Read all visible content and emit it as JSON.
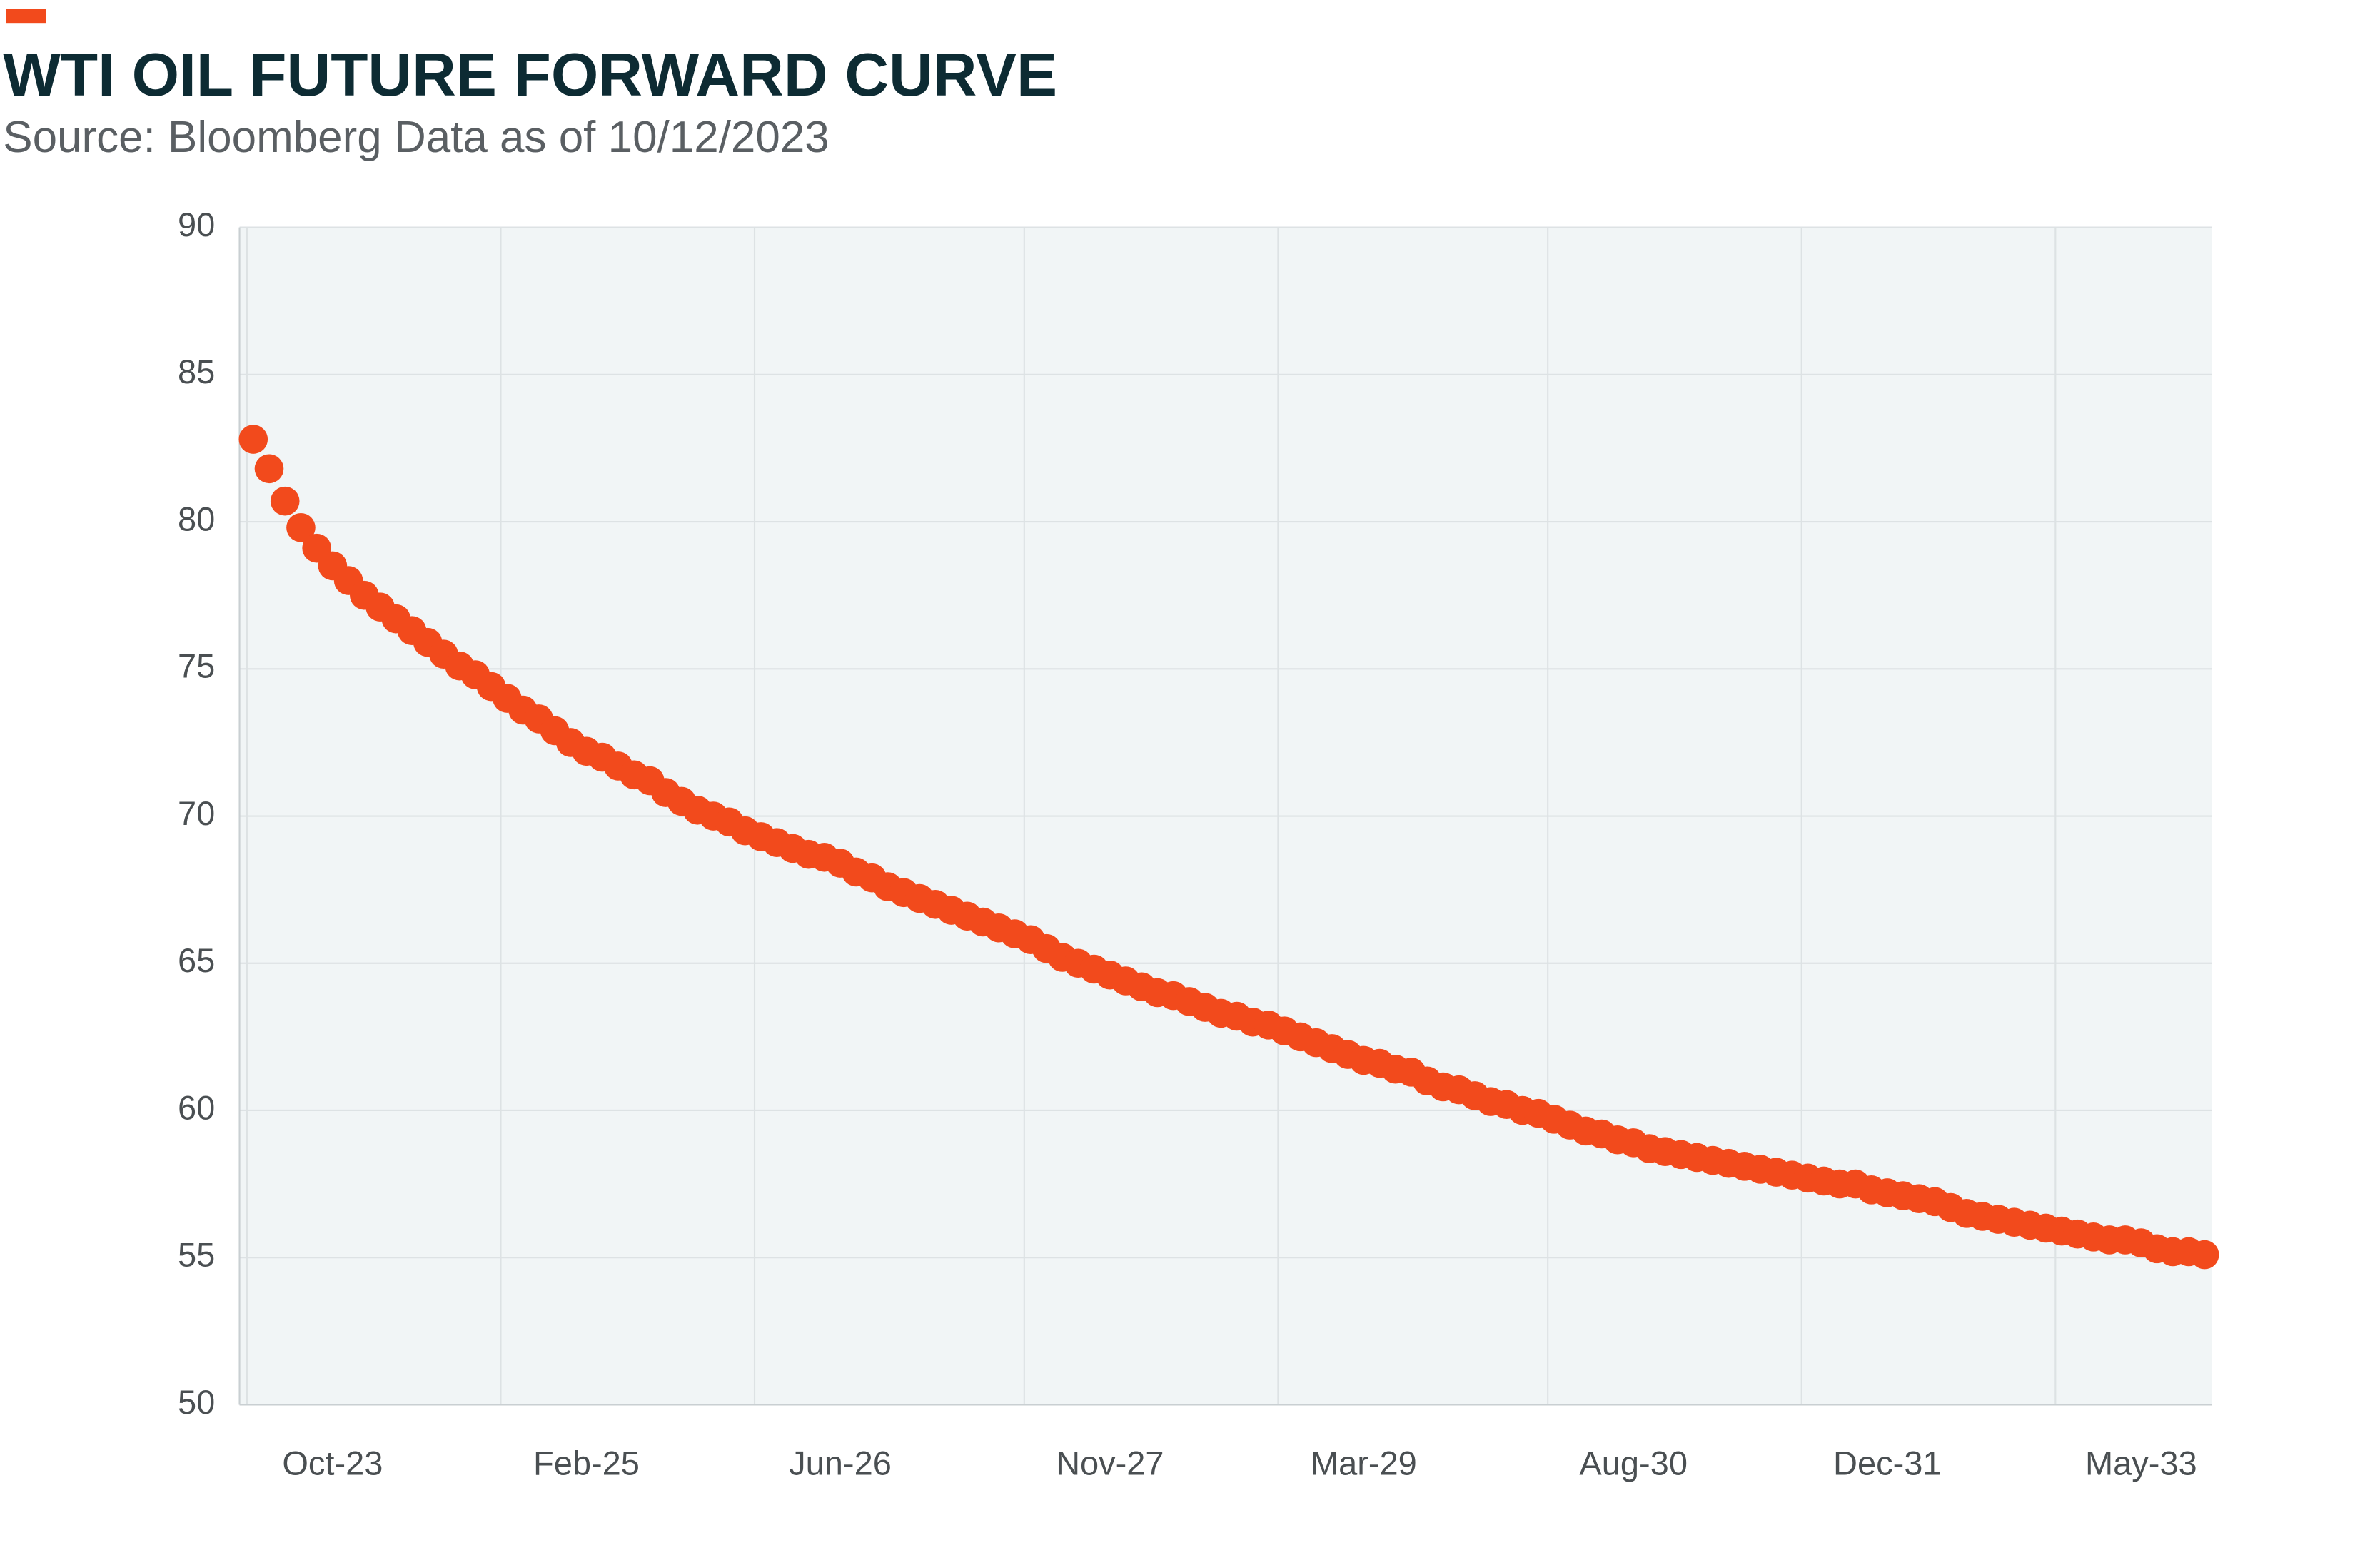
{
  "chart_data": {
    "type": "scatter",
    "title": "WTI OIL FUTURE FORWARD CURVE",
    "subtitle": "Source: Bloomberg Data as of 10/12/2023",
    "color": "#f24a1c",
    "grid": true,
    "categories": [
      null,
      null,
      null,
      null,
      null,
      "Oct-23",
      null,
      null,
      null,
      null,
      null,
      null,
      null,
      null,
      null,
      null,
      null,
      null,
      null,
      null,
      null,
      "Feb-25",
      null,
      null,
      null,
      null,
      null,
      null,
      null,
      null,
      null,
      null,
      null,
      null,
      null,
      null,
      null,
      "Jun-26",
      null,
      null,
      null,
      null,
      null,
      null,
      null,
      null,
      null,
      null,
      null,
      null,
      null,
      null,
      null,
      null,
      "Nov-27",
      null,
      null,
      null,
      null,
      null,
      null,
      null,
      null,
      null,
      null,
      null,
      null,
      null,
      null,
      null,
      "Mar-29",
      null,
      null,
      null,
      null,
      null,
      null,
      null,
      null,
      null,
      null,
      null,
      null,
      null,
      null,
      null,
      null,
      "Aug-30",
      null,
      null,
      null,
      null,
      null,
      null,
      null,
      null,
      null,
      null,
      null,
      null,
      null,
      null,
      null,
      "Dec-31",
      null,
      null,
      null,
      null,
      null,
      null,
      null,
      null,
      null,
      null,
      null,
      null,
      null,
      null,
      null,
      "May-33",
      null,
      null,
      null,
      null
    ],
    "values": [
      82.8,
      81.8,
      80.7,
      79.8,
      79.1,
      78.5,
      78.0,
      77.5,
      77.1,
      76.7,
      76.3,
      75.9,
      75.5,
      75.1,
      74.8,
      74.4,
      74.0,
      73.6,
      73.3,
      72.9,
      72.5,
      72.2,
      72.0,
      71.7,
      71.4,
      71.2,
      70.8,
      70.5,
      70.2,
      70.0,
      69.8,
      69.5,
      69.3,
      69.1,
      68.9,
      68.7,
      68.6,
      68.4,
      68.1,
      67.9,
      67.6,
      67.4,
      67.2,
      67.0,
      66.8,
      66.6,
      66.4,
      66.2,
      66.0,
      65.8,
      65.5,
      65.2,
      65.0,
      64.8,
      64.6,
      64.4,
      64.2,
      64.0,
      63.9,
      63.7,
      63.5,
      63.3,
      63.2,
      63.0,
      62.9,
      62.7,
      62.5,
      62.3,
      62.1,
      61.9,
      61.7,
      61.6,
      61.4,
      61.3,
      61.0,
      60.8,
      60.7,
      60.5,
      60.3,
      60.2,
      60.0,
      59.9,
      59.7,
      59.5,
      59.3,
      59.2,
      59.0,
      58.9,
      58.7,
      58.6,
      58.5,
      58.4,
      58.3,
      58.2,
      58.1,
      58.0,
      57.9,
      57.8,
      57.7,
      57.6,
      57.5,
      57.5,
      57.3,
      57.2,
      57.1,
      57.0,
      56.9,
      56.7,
      56.5,
      56.4,
      56.3,
      56.2,
      56.1,
      56.0,
      55.9,
      55.8,
      55.7,
      55.6,
      55.6,
      55.5,
      55.3,
      55.2,
      55.2,
      55.1
    ],
    "ylim": [
      50,
      90
    ],
    "yticks": [
      50,
      55,
      60,
      65,
      70,
      75,
      80,
      85,
      90
    ]
  }
}
